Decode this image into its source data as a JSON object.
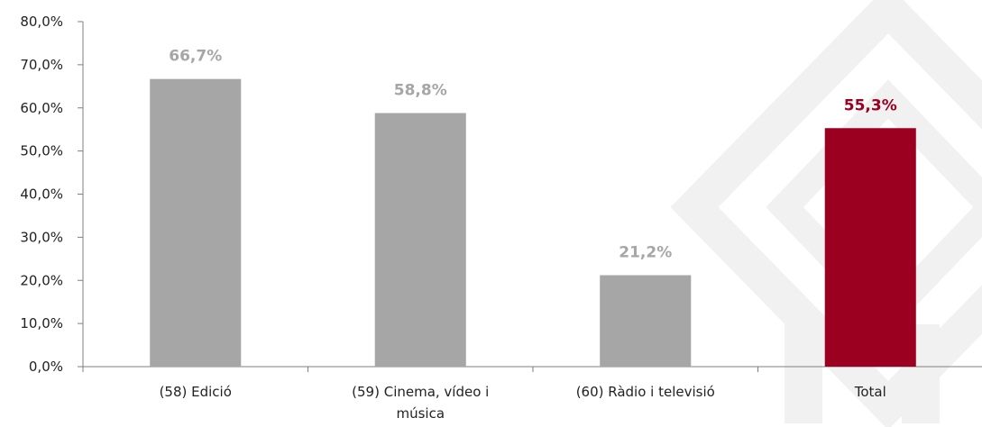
{
  "chart_data": {
    "type": "bar",
    "categories": [
      [
        "(58) Edició"
      ],
      [
        "(59) Cinema, vídeo i",
        "música"
      ],
      [
        "(60) Ràdio i televisió"
      ],
      [
        "Total"
      ]
    ],
    "values": [
      66.7,
      58.8,
      21.2,
      55.3
    ],
    "data_labels": [
      "66,7%",
      "58,8%",
      "21,2%",
      "55,3%"
    ],
    "bar_colors": [
      "#a6a6a6",
      "#a6a6a6",
      "#a6a6a6",
      "#9b0020"
    ],
    "ylim": [
      0,
      80
    ],
    "yticks": [
      {
        "value": 0,
        "label": "0,0%"
      },
      {
        "value": 10,
        "label": "10,0%"
      },
      {
        "value": 20,
        "label": "20,0%"
      },
      {
        "value": 30,
        "label": "30,0%"
      },
      {
        "value": 40,
        "label": "40,0%"
      },
      {
        "value": 50,
        "label": "50,0%"
      },
      {
        "value": 60,
        "label": "60,0%"
      },
      {
        "value": 70,
        "label": "70,0%"
      },
      {
        "value": 80,
        "label": "80,0%"
      }
    ],
    "title": "",
    "xlabel": "",
    "ylabel": "",
    "grid": false,
    "legend": "none",
    "watermark_color": "#f1f1f1",
    "axis_color": "#7f7f7f"
  }
}
